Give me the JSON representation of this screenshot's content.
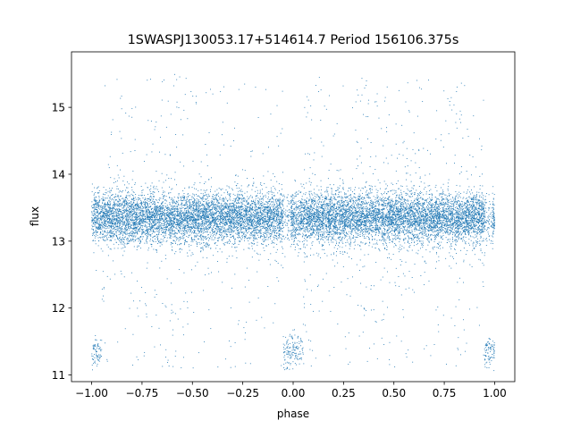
{
  "chart_data": {
    "type": "scatter",
    "title": "1SWASPJ130053.17+514614.7 Period 156106.375s",
    "xlabel": "phase",
    "ylabel": "flux",
    "xlim": [
      -1.1,
      1.1
    ],
    "ylim": [
      10.9,
      15.83
    ],
    "xticks": [
      -1.0,
      -0.75,
      -0.5,
      -0.25,
      0.0,
      0.25,
      0.5,
      0.75,
      1.0
    ],
    "xtick_labels": [
      "−1.00",
      "−0.75",
      "−0.50",
      "−0.25",
      "0.00",
      "0.25",
      "0.50",
      "0.75",
      "1.00"
    ],
    "yticks": [
      11,
      12,
      13,
      14,
      15
    ],
    "ytick_labels": [
      "11",
      "12",
      "13",
      "14",
      "15"
    ],
    "grid": false,
    "legend": "none",
    "marker_color": "#1f77b4",
    "series": [
      {
        "x_range": [
          -1.0,
          1.0
        ],
        "baseline_flux": 13.35,
        "baseline_spread": 0.25,
        "point_count": 14000,
        "eclipse_phases": [
          -1.0,
          0.0,
          1.0
        ],
        "eclipse_flux": 11.35,
        "eclipse_halfwidth": 0.05,
        "scatter_band_phases": [
          -0.95,
          -0.62,
          -0.55,
          0.05,
          0.38,
          0.45,
          0.82
        ],
        "x_gap_phases": [
          -0.03,
          0.97
        ]
      }
    ]
  }
}
